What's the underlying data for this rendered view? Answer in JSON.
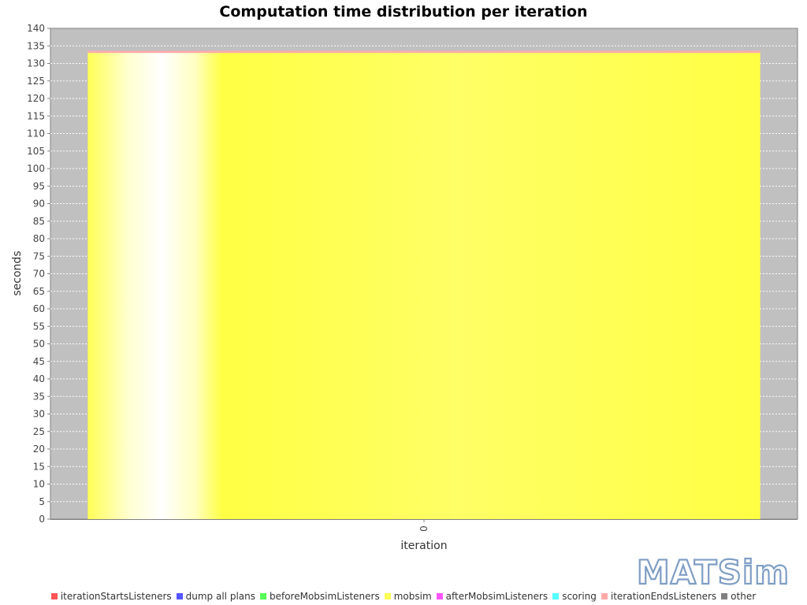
{
  "chart_data": {
    "type": "bar",
    "stacked": true,
    "title": "Computation time distribution per iteration",
    "xlabel": "iteration",
    "ylabel": "seconds",
    "categories": [
      "0"
    ],
    "ylim": [
      0,
      140
    ],
    "ytick_step": 5,
    "grid": true,
    "legend_position": "bottom",
    "series": [
      {
        "name": "iterationStartsListeners",
        "color": "#ff5555",
        "values": [
          0
        ]
      },
      {
        "name": "dump all plans",
        "color": "#5555ff",
        "values": [
          0
        ]
      },
      {
        "name": "beforeMobsimListeners",
        "color": "#55ff55",
        "values": [
          0
        ]
      },
      {
        "name": "mobsim",
        "color": "#ffff55",
        "values": [
          133
        ]
      },
      {
        "name": "afterMobsimListeners",
        "color": "#ff55ff",
        "values": [
          0
        ]
      },
      {
        "name": "scoring",
        "color": "#55ffff",
        "values": [
          0
        ]
      },
      {
        "name": "iterationEndsListeners",
        "color": "#ffaaaa",
        "values": [
          0.6
        ]
      },
      {
        "name": "other",
        "color": "#808080",
        "values": [
          0
        ]
      }
    ]
  },
  "logo": {
    "text": "MATSim"
  }
}
